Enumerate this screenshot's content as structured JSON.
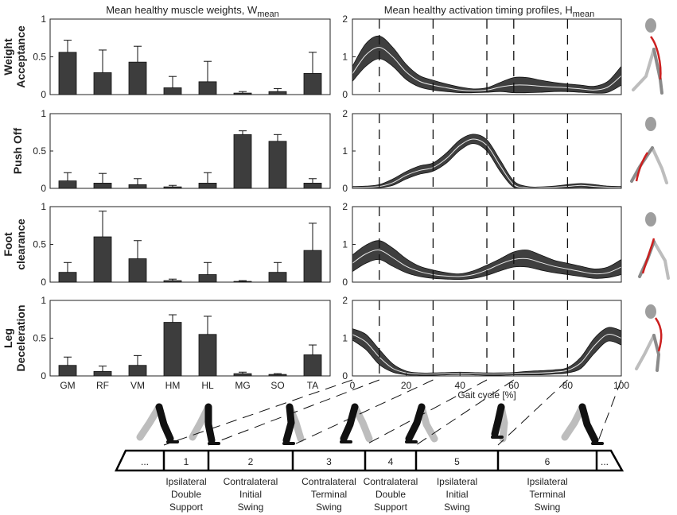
{
  "figure": {
    "left_title": "Mean healthy muscle weights, W",
    "left_title_sub": "mean",
    "right_title": "Mean healthy activation timing profiles, H",
    "right_title_sub": "mean",
    "xlabel": "Gait cycle [%]"
  },
  "chart_data": [
    {
      "type": "bar",
      "title": "Mean healthy muscle weights, Wmean",
      "categories": [
        "GM",
        "RF",
        "VM",
        "HM",
        "HL",
        "MG",
        "SO",
        "TA"
      ],
      "ylim": [
        0,
        1
      ],
      "yticks": [
        "0",
        "0.5",
        "1"
      ],
      "series": [
        {
          "name": "Weight Acceptance",
          "values": [
            0.56,
            0.29,
            0.43,
            0.09,
            0.17,
            0.02,
            0.04,
            0.28
          ],
          "errors": [
            0.16,
            0.3,
            0.21,
            0.15,
            0.27,
            0.02,
            0.04,
            0.28
          ]
        },
        {
          "name": "Push Off",
          "values": [
            0.1,
            0.07,
            0.05,
            0.02,
            0.07,
            0.72,
            0.63,
            0.07
          ],
          "errors": [
            0.11,
            0.13,
            0.08,
            0.02,
            0.14,
            0.05,
            0.09,
            0.06
          ]
        },
        {
          "name": "Foot clearance",
          "values": [
            0.13,
            0.6,
            0.31,
            0.02,
            0.1,
            0.01,
            0.13,
            0.42
          ],
          "errors": [
            0.13,
            0.34,
            0.24,
            0.02,
            0.16,
            0.01,
            0.13,
            0.36
          ]
        },
        {
          "name": "Leg Deceleration",
          "values": [
            0.14,
            0.06,
            0.14,
            0.71,
            0.55,
            0.03,
            0.02,
            0.28
          ],
          "errors": [
            0.11,
            0.07,
            0.13,
            0.1,
            0.24,
            0.02,
            0.01,
            0.13
          ]
        }
      ]
    },
    {
      "type": "area",
      "title": "Mean healthy activation timing profiles, Hmean",
      "xlabel": "Gait cycle [%]",
      "xlim": [
        0,
        100
      ],
      "ylim": [
        0,
        2
      ],
      "xticks": [
        "0",
        "20",
        "40",
        "60",
        "80",
        "100"
      ],
      "yticks": [
        "0",
        "1",
        "2"
      ],
      "phase_boundaries": [
        10,
        30,
        50,
        60,
        80
      ],
      "x": [
        0,
        5,
        10,
        15,
        20,
        25,
        30,
        35,
        40,
        45,
        50,
        55,
        60,
        65,
        70,
        75,
        80,
        85,
        90,
        95,
        100
      ],
      "series": [
        {
          "name": "Weight Acceptance",
          "mean": [
            0.55,
            1.05,
            1.25,
            1.0,
            0.6,
            0.35,
            0.25,
            0.18,
            0.12,
            0.1,
            0.12,
            0.2,
            0.25,
            0.25,
            0.22,
            0.2,
            0.18,
            0.15,
            0.12,
            0.2,
            0.5
          ],
          "upper": [
            0.75,
            1.35,
            1.55,
            1.25,
            0.8,
            0.5,
            0.38,
            0.28,
            0.2,
            0.15,
            0.18,
            0.32,
            0.45,
            0.45,
            0.38,
            0.32,
            0.28,
            0.25,
            0.22,
            0.35,
            0.75
          ],
          "lower": [
            0.35,
            0.75,
            0.95,
            0.75,
            0.4,
            0.2,
            0.12,
            0.08,
            0.05,
            0.05,
            0.06,
            0.08,
            0.05,
            0.05,
            0.06,
            0.08,
            0.08,
            0.06,
            0.04,
            0.06,
            0.25
          ]
        },
        {
          "name": "Push Off",
          "mean": [
            0.02,
            0.03,
            0.05,
            0.15,
            0.35,
            0.48,
            0.56,
            0.8,
            1.15,
            1.32,
            1.15,
            0.6,
            0.1,
            0.02,
            0.02,
            0.03,
            0.05,
            0.08,
            0.05,
            0.03,
            0.02
          ],
          "upper": [
            0.05,
            0.06,
            0.1,
            0.25,
            0.45,
            0.6,
            0.68,
            0.95,
            1.3,
            1.45,
            1.3,
            0.75,
            0.2,
            0.05,
            0.04,
            0.06,
            0.1,
            0.13,
            0.1,
            0.06,
            0.05
          ],
          "lower": [
            0.0,
            0.01,
            0.02,
            0.08,
            0.25,
            0.38,
            0.46,
            0.68,
            1.02,
            1.2,
            1.0,
            0.45,
            0.03,
            0.0,
            0.0,
            0.0,
            0.02,
            0.03,
            0.01,
            0.0,
            0.0
          ]
        },
        {
          "name": "Foot clearance",
          "mean": [
            0.5,
            0.75,
            0.85,
            0.65,
            0.42,
            0.28,
            0.2,
            0.16,
            0.15,
            0.2,
            0.32,
            0.48,
            0.6,
            0.62,
            0.52,
            0.42,
            0.35,
            0.28,
            0.22,
            0.25,
            0.4
          ],
          "upper": [
            0.72,
            0.98,
            1.1,
            0.9,
            0.62,
            0.42,
            0.32,
            0.25,
            0.22,
            0.3,
            0.45,
            0.62,
            0.8,
            0.85,
            0.72,
            0.58,
            0.5,
            0.42,
            0.35,
            0.4,
            0.6
          ],
          "lower": [
            0.28,
            0.5,
            0.6,
            0.42,
            0.25,
            0.15,
            0.1,
            0.08,
            0.07,
            0.1,
            0.18,
            0.3,
            0.4,
            0.4,
            0.32,
            0.25,
            0.2,
            0.15,
            0.1,
            0.12,
            0.2
          ]
        },
        {
          "name": "Leg Deceleration",
          "mean": [
            1.1,
            0.9,
            0.5,
            0.2,
            0.08,
            0.05,
            0.05,
            0.06,
            0.07,
            0.06,
            0.05,
            0.05,
            0.06,
            0.07,
            0.08,
            0.1,
            0.15,
            0.35,
            0.8,
            1.1,
            1.0
          ],
          "upper": [
            1.25,
            1.1,
            0.7,
            0.32,
            0.13,
            0.08,
            0.08,
            0.09,
            0.1,
            0.09,
            0.08,
            0.08,
            0.09,
            0.12,
            0.14,
            0.16,
            0.22,
            0.5,
            1.0,
            1.28,
            1.2
          ],
          "lower": [
            0.95,
            0.7,
            0.3,
            0.1,
            0.03,
            0.02,
            0.02,
            0.03,
            0.04,
            0.03,
            0.02,
            0.02,
            0.03,
            0.03,
            0.03,
            0.05,
            0.08,
            0.2,
            0.6,
            0.92,
            0.82
          ]
        }
      ]
    }
  ],
  "row_labels": [
    [
      "Weight",
      "Acceptance"
    ],
    [
      "Push Off"
    ],
    [
      "Foot",
      "clearance"
    ],
    [
      "Leg",
      "Deceleration"
    ]
  ],
  "phase_bar": {
    "cells": [
      "...",
      "1",
      "2",
      "3",
      "4",
      "5",
      "6",
      "..."
    ],
    "labels": [
      [
        "Ipsilateral",
        "Double",
        "Support"
      ],
      [
        "Contralateral",
        "Initial",
        "Swing"
      ],
      [
        "Contralateral",
        "Terminal",
        "Swing"
      ],
      [
        "Contralateral",
        "Double",
        "Support"
      ],
      [
        "Ipsilateral",
        "Initial",
        "Swing"
      ],
      [
        "Ipsilateral",
        "Terminal",
        "Swing"
      ]
    ]
  },
  "colors": {
    "bar_fill": "#3d3d3d",
    "band_fill": "#3f3f3f",
    "mean_line": "#e8e8e8",
    "axis": "#222222",
    "phase_dash": "#111111",
    "highlight_muscle": "#cc1f1f",
    "leg_near": "#111111",
    "leg_far": "#bdbdbd"
  }
}
